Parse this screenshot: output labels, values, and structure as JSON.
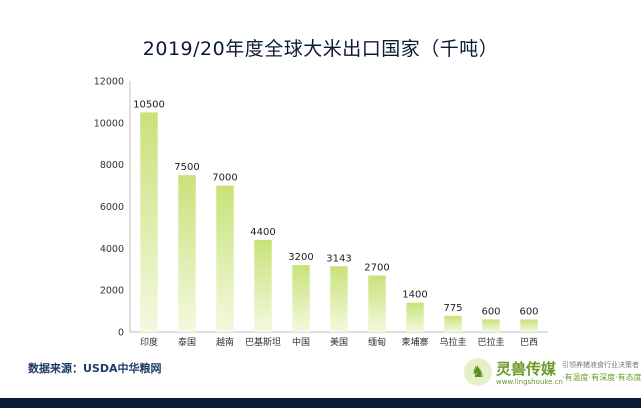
{
  "chart_data": {
    "type": "bar",
    "title": "2019/20年度全球大米出口国家（千吨）",
    "categories": [
      "印度",
      "泰国",
      "越南",
      "巴基斯坦",
      "中国",
      "美国",
      "缅甸",
      "柬埔寨",
      "乌拉圭",
      "巴拉圭",
      "巴西"
    ],
    "values": [
      10500,
      7500,
      7000,
      4400,
      3200,
      3143,
      2700,
      1400,
      775,
      600,
      600
    ],
    "value_labels": [
      "10500",
      "7500",
      "7000",
      "4400",
      "3200",
      "3143",
      "2700",
      "1400",
      "775",
      "600",
      "600"
    ],
    "yticks": [
      0,
      2000,
      4000,
      6000,
      8000,
      10000,
      12000
    ],
    "ytick_labels": [
      "0",
      "2000",
      "4000",
      "6000",
      "8000",
      "10000",
      "12000"
    ],
    "ylim": [
      0,
      12000
    ],
    "xlabel": "",
    "ylabel": "",
    "grid": false,
    "legend": "none"
  },
  "source_text": "数据来源：USDA中华粮网",
  "logo": {
    "mark": "♞",
    "name": "灵兽传媒",
    "url": "www.lingshouke.cn",
    "slogan_top": "引领养猪液食行业决策者",
    "slogan_bottom": "·有温度·有深度·有态度"
  },
  "colors": {
    "bar_top": "#c8e27a",
    "bar_bottom": "#f3f9df",
    "title": "#0c1a33",
    "footer_bar": "#0c1a33"
  }
}
